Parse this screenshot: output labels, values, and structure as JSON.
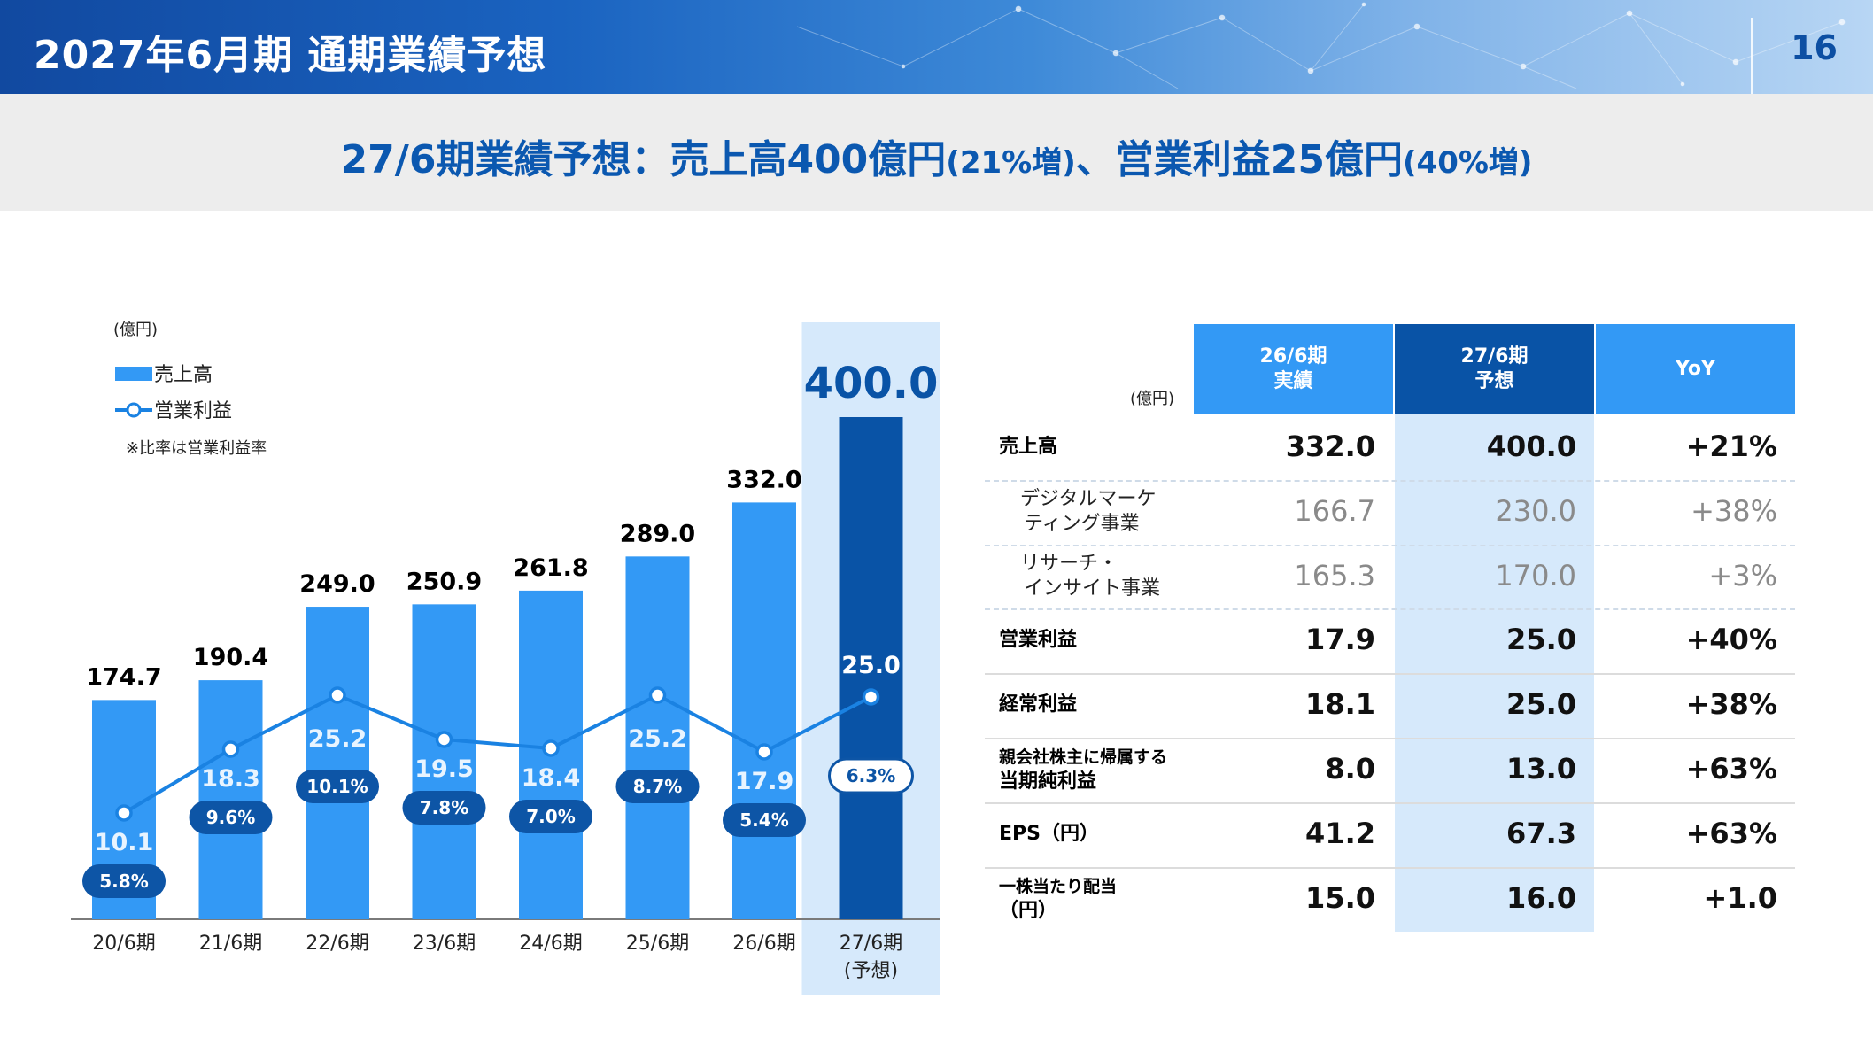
{
  "header": {
    "title": "2027年6月期 通期業績予想",
    "page_number": "16"
  },
  "subtitle": {
    "part1": "27/6期業績予想：売上高400億円",
    "part2": "(21%増)",
    "part3": "、営業利益25億円",
    "part4": "(40%増)"
  },
  "chart_data": {
    "type": "bar",
    "unit_label": "(億円)",
    "legend": {
      "bar": "売上高",
      "line": "営業利益"
    },
    "note": "※比率は営業利益率",
    "categories": [
      "20/6期",
      "21/6期",
      "22/6期",
      "23/6期",
      "24/6期",
      "25/6期",
      "26/6期",
      "27/6期"
    ],
    "forecast_sublabel": "(予想)",
    "series": [
      {
        "name": "売上高",
        "values": [
          174.7,
          190.4,
          249.0,
          250.9,
          261.8,
          289.0,
          332.0,
          400.0
        ],
        "labels": [
          "174.7",
          "190.4",
          "249.0",
          "250.9",
          "261.8",
          "289.0",
          "332.0",
          "400.0"
        ]
      },
      {
        "name": "営業利益",
        "values": [
          10.1,
          18.3,
          25.2,
          19.5,
          18.4,
          25.2,
          17.9,
          25.0
        ],
        "labels": [
          "10.1",
          "18.3",
          "25.2",
          "19.5",
          "18.4",
          "25.2",
          "17.9",
          "25.0"
        ]
      }
    ],
    "operating_margin": [
      "5.8%",
      "9.6%",
      "10.1%",
      "7.8%",
      "7.0%",
      "8.7%",
      "5.4%",
      "6.3%"
    ],
    "colors": {
      "bar": "#3399f5",
      "forecast_bar": "#0953a6",
      "line": "#1a82e2",
      "highlight": "#d6e9fb",
      "pill": "#0d55a6"
    }
  },
  "table": {
    "unit": "(億円)",
    "headers": [
      {
        "line1": "26/6期",
        "line2": "実績"
      },
      {
        "line1": "27/6期",
        "line2": "予想"
      },
      {
        "line1": "YoY",
        "line2": ""
      }
    ],
    "rows": [
      {
        "label1": "売上高",
        "label2": "",
        "actual": "332.0",
        "forecast": "400.0",
        "yoy": "+21%",
        "sub": false
      },
      {
        "label1": "デジタルマーケ",
        "label2": "ティング事業",
        "actual": "166.7",
        "forecast": "230.0",
        "yoy": "+38%",
        "sub": true
      },
      {
        "label1": "リサーチ・",
        "label2": "インサイト事業",
        "actual": "165.3",
        "forecast": "170.0",
        "yoy": "+3%",
        "sub": true
      },
      {
        "label1": "営業利益",
        "label2": "",
        "actual": "17.9",
        "forecast": "25.0",
        "yoy": "+40%",
        "sub": false
      },
      {
        "label1": "経常利益",
        "label2": "",
        "actual": "18.1",
        "forecast": "25.0",
        "yoy": "+38%",
        "sub": false
      },
      {
        "label1": "親会社株主に帰属する",
        "label2": "当期純利益",
        "actual": "8.0",
        "forecast": "13.0",
        "yoy": "+63%",
        "sub": false
      },
      {
        "label1": "EPS（円）",
        "label2": "",
        "actual": "41.2",
        "forecast": "67.3",
        "yoy": "+63%",
        "sub": false
      },
      {
        "label1": "一株当たり配当",
        "label2": "（円）",
        "actual": "15.0",
        "forecast": "16.0",
        "yoy": "+1.0",
        "sub": false
      }
    ],
    "colors": {
      "header_light": "#3399f5",
      "header_dark": "#0953a6",
      "forecast_col": "#d6e9fb"
    }
  }
}
